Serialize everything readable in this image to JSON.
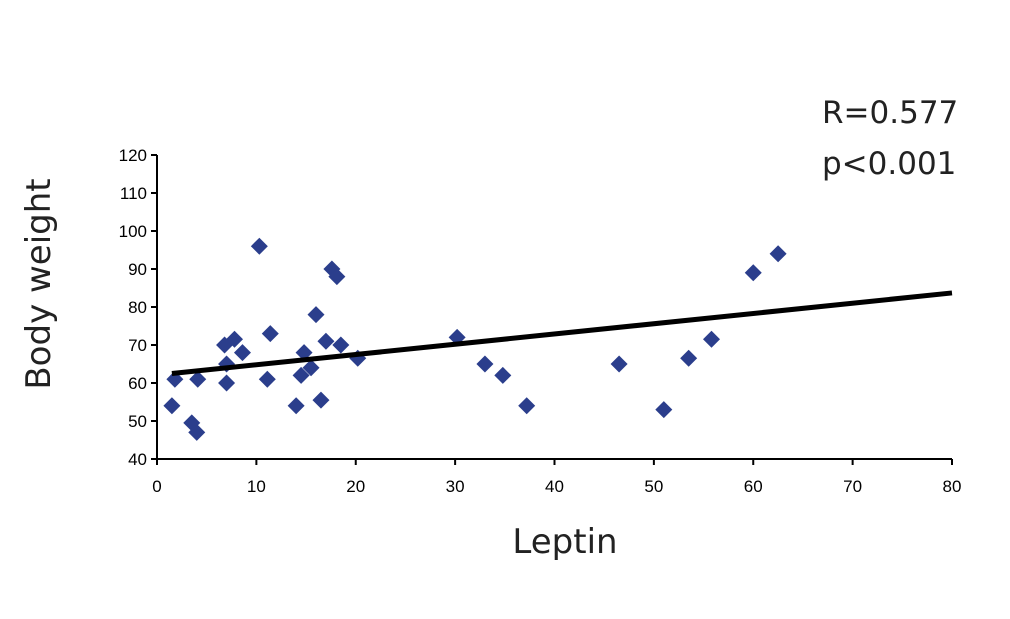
{
  "chart_data": {
    "type": "scatter",
    "xlabel": "Leptin",
    "ylabel": "Body weight",
    "xlim": [
      0,
      80
    ],
    "ylim": [
      40,
      120
    ],
    "xticks": [
      "0",
      "10",
      "20",
      "30",
      "40",
      "50",
      "60",
      "70",
      "80"
    ],
    "yticks": [
      "40",
      "50",
      "60",
      "70",
      "80",
      "90",
      "100",
      "110",
      "120"
    ],
    "annotations": {
      "r": "R=0.577",
      "p": "p<0.001"
    },
    "grid": false,
    "legend": "none",
    "marker_color": "#2b3e8c",
    "line_color": "#000000",
    "series": [
      {
        "marker": "diamond",
        "points": [
          {
            "x": 1.5,
            "y": 54
          },
          {
            "x": 1.8,
            "y": 61
          },
          {
            "x": 3.5,
            "y": 49.5
          },
          {
            "x": 4.0,
            "y": 47
          },
          {
            "x": 4.1,
            "y": 61
          },
          {
            "x": 6.8,
            "y": 70
          },
          {
            "x": 7.0,
            "y": 65
          },
          {
            "x": 7.0,
            "y": 60
          },
          {
            "x": 7.8,
            "y": 71.5
          },
          {
            "x": 8.6,
            "y": 68
          },
          {
            "x": 10.3,
            "y": 96
          },
          {
            "x": 11.1,
            "y": 61
          },
          {
            "x": 11.4,
            "y": 73
          },
          {
            "x": 14.0,
            "y": 54
          },
          {
            "x": 14.5,
            "y": 62
          },
          {
            "x": 14.8,
            "y": 68
          },
          {
            "x": 15.5,
            "y": 64
          },
          {
            "x": 16.0,
            "y": 78
          },
          {
            "x": 16.5,
            "y": 55.5
          },
          {
            "x": 17.0,
            "y": 71
          },
          {
            "x": 17.6,
            "y": 90
          },
          {
            "x": 18.1,
            "y": 88
          },
          {
            "x": 18.5,
            "y": 70
          },
          {
            "x": 20.2,
            "y": 66.5
          },
          {
            "x": 30.2,
            "y": 72
          },
          {
            "x": 33.0,
            "y": 65
          },
          {
            "x": 34.8,
            "y": 62
          },
          {
            "x": 37.2,
            "y": 54
          },
          {
            "x": 46.5,
            "y": 65
          },
          {
            "x": 51.0,
            "y": 53
          },
          {
            "x": 53.5,
            "y": 66.5
          },
          {
            "x": 55.8,
            "y": 71.5
          },
          {
            "x": 60.0,
            "y": 89
          },
          {
            "x": 62.5,
            "y": 94
          }
        ]
      }
    ],
    "trendline": {
      "x": [
        1.5,
        80
      ],
      "y": [
        62.5,
        83.7
      ]
    }
  }
}
